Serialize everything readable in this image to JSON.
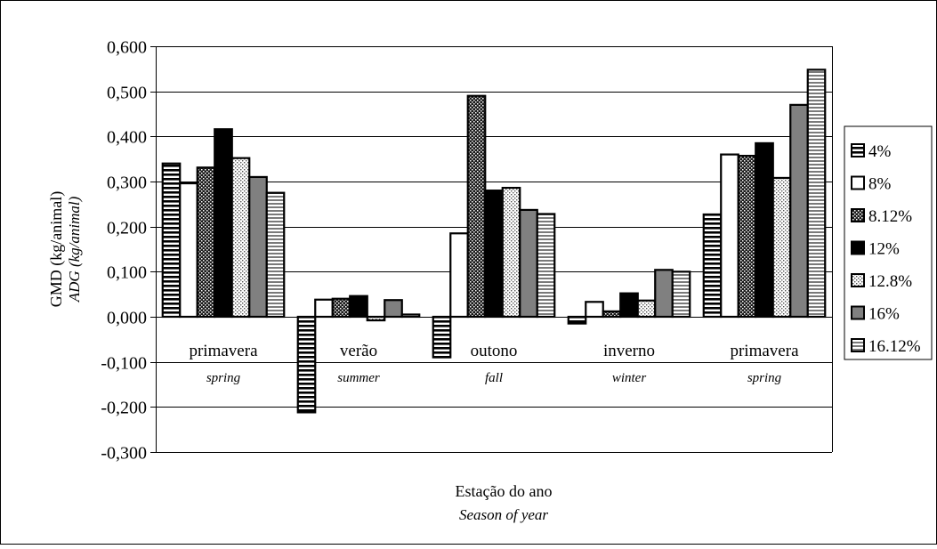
{
  "chart_data": {
    "type": "bar",
    "categories": [
      "primavera",
      "verão",
      "outono",
      "inverno",
      "primavera"
    ],
    "category_subtitles": [
      "spring",
      "summer",
      "fall",
      "winter",
      "spring"
    ],
    "ylabel": "GMD (kg/animal)",
    "ylabel_sub": "ADG (kg/animal)",
    "xlabel": "Estação do ano",
    "xlabel_sub": "Season of year",
    "ylim": [
      -0.3,
      0.6
    ],
    "ytick_step": 0.1,
    "yticks": [
      "-0,300",
      "-0,200",
      "-0,100",
      "0,000",
      "0,100",
      "0,200",
      "0,300",
      "0,400",
      "0,500",
      "0,600"
    ],
    "grid": true,
    "legend_position": "right",
    "series": [
      {
        "name": "4%",
        "pattern": "hstripes",
        "values": [
          0.34,
          -0.212,
          -0.09,
          -0.015,
          0.227
        ]
      },
      {
        "name": "8%",
        "pattern": "white",
        "values": [
          0.296,
          0.038,
          0.185,
          0.033,
          0.36
        ]
      },
      {
        "name": "8.12%",
        "pattern": "dots-dark",
        "values": [
          0.331,
          0.04,
          0.49,
          0.012,
          0.357
        ]
      },
      {
        "name": "12%",
        "pattern": "black",
        "values": [
          0.416,
          0.046,
          0.28,
          0.052,
          0.385
        ]
      },
      {
        "name": "12.8%",
        "pattern": "dots-light",
        "values": [
          0.352,
          -0.008,
          0.286,
          0.036,
          0.308
        ]
      },
      {
        "name": "16%",
        "pattern": "gray",
        "values": [
          0.31,
          0.037,
          0.237,
          0.104,
          0.47
        ]
      },
      {
        "name": "16.12%",
        "pattern": "hstripes-light",
        "values": [
          0.275,
          0.005,
          0.228,
          0.1,
          0.548
        ]
      }
    ]
  }
}
